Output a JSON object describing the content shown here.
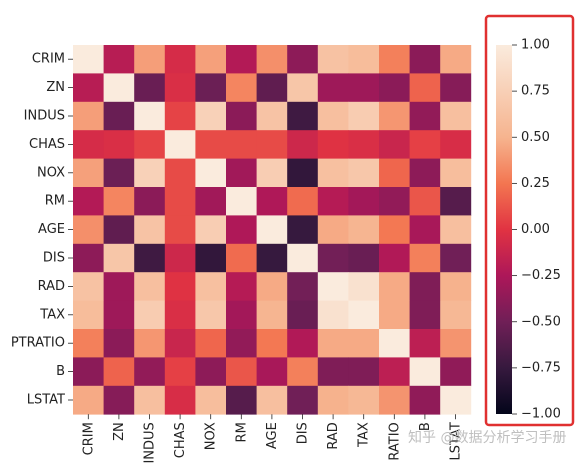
{
  "chart_data": {
    "type": "heatmap",
    "labels": [
      "CRIM",
      "ZN",
      "INDUS",
      "CHAS",
      "NOX",
      "RM",
      "AGE",
      "DIS",
      "RAD",
      "TAX",
      "PTRATIO",
      "B",
      "LSTAT"
    ],
    "x_tick_labels": [
      "CRIM",
      "ZN",
      "INDUS",
      "CHAS",
      "NOX",
      "RM",
      "AGE",
      "DIS",
      "RAD",
      "TAX",
      "RATIO",
      "B",
      "LSTAT"
    ],
    "values": [
      [
        1.0,
        -0.2,
        0.41,
        -0.06,
        0.42,
        -0.22,
        0.35,
        -0.38,
        0.63,
        0.58,
        0.29,
        -0.39,
        0.46
      ],
      [
        -0.2,
        1.0,
        -0.53,
        -0.04,
        -0.52,
        0.31,
        -0.57,
        0.66,
        -0.31,
        -0.31,
        -0.39,
        0.18,
        -0.41
      ],
      [
        0.41,
        -0.53,
        1.0,
        0.06,
        0.76,
        -0.39,
        0.64,
        -0.71,
        0.6,
        0.72,
        0.38,
        -0.36,
        0.6
      ],
      [
        -0.06,
        -0.04,
        0.06,
        1.0,
        0.09,
        0.09,
        0.09,
        -0.1,
        -0.01,
        -0.04,
        -0.12,
        0.05,
        -0.05
      ],
      [
        0.42,
        -0.52,
        0.76,
        0.09,
        1.0,
        -0.3,
        0.73,
        -0.77,
        0.61,
        0.67,
        0.19,
        -0.38,
        0.59
      ],
      [
        -0.22,
        0.31,
        -0.39,
        0.09,
        -0.3,
        1.0,
        -0.24,
        0.21,
        -0.21,
        -0.29,
        -0.36,
        0.13,
        -0.61
      ],
      [
        0.35,
        -0.57,
        0.64,
        0.09,
        0.73,
        -0.24,
        1.0,
        -0.75,
        0.46,
        0.51,
        0.26,
        -0.27,
        0.6
      ],
      [
        -0.38,
        0.66,
        -0.71,
        -0.1,
        -0.77,
        0.21,
        -0.75,
        1.0,
        -0.49,
        -0.53,
        -0.23,
        0.29,
        -0.5
      ],
      [
        0.63,
        -0.31,
        0.6,
        -0.01,
        0.61,
        -0.21,
        0.46,
        -0.49,
        1.0,
        0.91,
        0.46,
        -0.44,
        0.49
      ],
      [
        0.58,
        -0.31,
        0.72,
        -0.04,
        0.67,
        -0.29,
        0.51,
        -0.53,
        0.91,
        1.0,
        0.46,
        -0.44,
        0.54
      ],
      [
        0.29,
        -0.39,
        0.38,
        -0.12,
        0.19,
        -0.36,
        0.26,
        -0.23,
        0.46,
        0.46,
        1.0,
        -0.18,
        0.37
      ],
      [
        -0.39,
        0.18,
        -0.36,
        0.05,
        -0.38,
        0.13,
        -0.27,
        0.29,
        -0.44,
        -0.44,
        -0.18,
        1.0,
        -0.37
      ],
      [
        0.46,
        -0.41,
        0.6,
        -0.05,
        0.59,
        -0.61,
        0.6,
        -0.5,
        0.49,
        0.54,
        0.37,
        -0.37,
        1.0
      ]
    ],
    "colorbar": {
      "range": [
        -1.0,
        1.0
      ],
      "ticks": [
        1.0,
        0.75,
        0.5,
        0.25,
        0.0,
        -0.25,
        -0.5,
        -0.75,
        -1.0
      ],
      "tick_labels": [
        "1.00",
        "0.75",
        "0.50",
        "0.25",
        "0.00",
        "−0.25",
        "−0.50",
        "−0.75",
        "−1.00"
      ],
      "colormap": "rocket",
      "highlight_box_color": "#e03030"
    },
    "title": "",
    "xlabel": "",
    "ylabel": ""
  },
  "watermark": "知乎 @数据分析学习手册"
}
